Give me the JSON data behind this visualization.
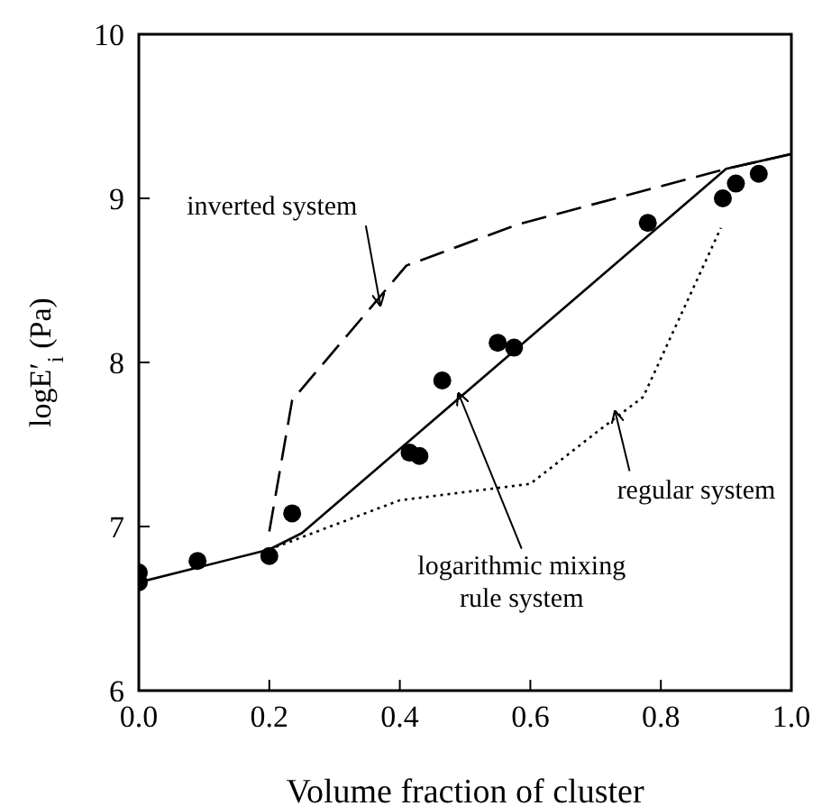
{
  "chart_data": {
    "type": "line",
    "xlabel": "Volume fraction of cluster",
    "ylabel": "logE′$_{i}$  (Pa)",
    "xlim": [
      0,
      1
    ],
    "xticks": [
      {
        "value": 0,
        "label": "0.0"
      },
      0.2,
      0.4,
      0.6,
      0.8,
      {
        "value": 1,
        "label": "1.0"
      }
    ],
    "ylim": [
      6,
      10
    ],
    "yticks": [
      6,
      7,
      8,
      9,
      10
    ],
    "series": [
      {
        "type": "scatter",
        "color": "#000000",
        "marker": "circle",
        "x": [
          0,
          0,
          0.09,
          0.2,
          0.235,
          0.415,
          0.43,
          0.465,
          0.55,
          0.575,
          0.78,
          0.895,
          0.915,
          0.95
        ],
        "values": [
          6.72,
          6.66,
          6.79,
          6.82,
          7.08,
          7.45,
          7.43,
          7.89,
          8.12,
          8.09,
          8.85,
          9.0,
          9.09,
          9.15
        ]
      },
      {
        "color": "#000000",
        "line_style": "solid",
        "marker": "none",
        "x": [
          0,
          0.2,
          0.25,
          0.9,
          1.0
        ],
        "values": [
          6.66,
          6.86,
          6.96,
          9.18,
          9.27
        ]
      },
      {
        "color": "#000000",
        "line_style": "dashed",
        "marker": "none",
        "x": [
          0.2,
          0.235,
          0.41,
          0.58,
          0.9,
          1.0
        ],
        "values": [
          6.97,
          7.77,
          8.59,
          8.84,
          9.18,
          9.27
        ]
      },
      {
        "color": "#000000",
        "line_style": "dotted",
        "marker": "none",
        "x": [
          0.2,
          0.4,
          0.6,
          0.7,
          0.773,
          0.892
        ],
        "values": [
          6.86,
          7.16,
          7.26,
          7.57,
          7.79,
          8.82
        ]
      }
    ],
    "annotations": [
      {
        "text": "inverted system",
        "x": 0.37,
        "y": 8.35
      },
      {
        "text": "logarithmic mixing\nrule system",
        "x": 0.49,
        "y": 7.81
      },
      {
        "text": "regular system",
        "x": 0.73,
        "y": 7.7
      }
    ]
  }
}
